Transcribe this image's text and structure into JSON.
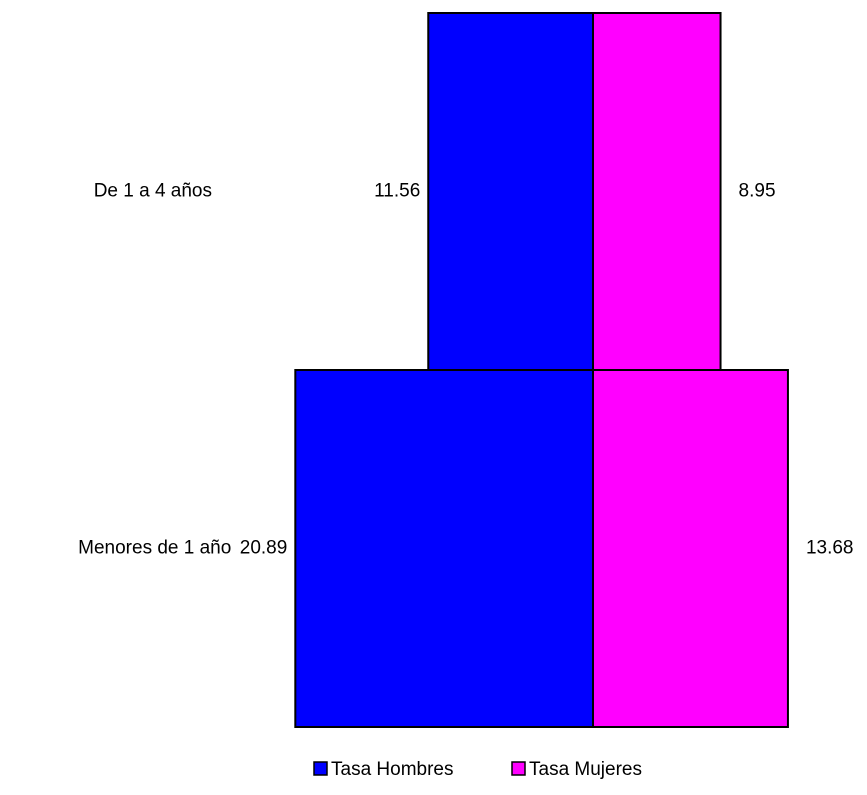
{
  "chart_data": {
    "type": "bar",
    "orientation": "horizontal-population-pyramid",
    "categories": [
      "Menores de 1 año",
      "De 1 a 4 años"
    ],
    "series": [
      {
        "name": "Tasa Hombres",
        "values": [
          20.89,
          11.56
        ],
        "color": "#0000FF"
      },
      {
        "name": "Tasa Mujeres",
        "values": [
          13.68,
          8.95
        ],
        "color": "#FF00FF"
      }
    ],
    "legend_position": "bottom",
    "grid": false
  }
}
